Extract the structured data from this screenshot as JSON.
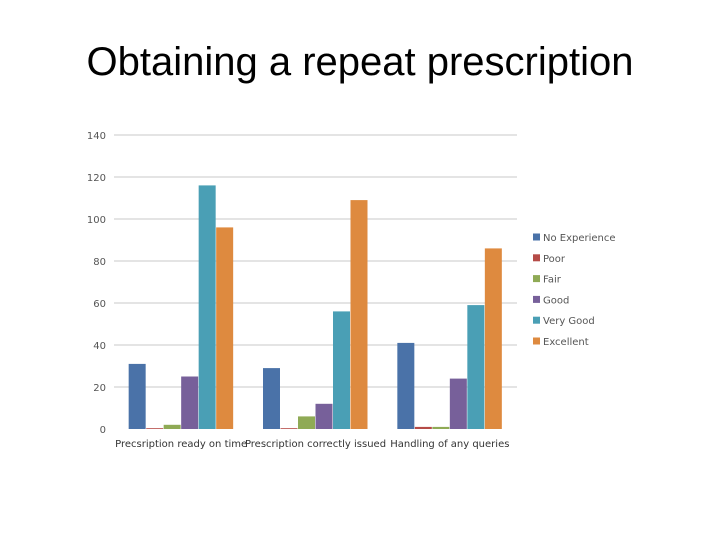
{
  "slide": {
    "title": "Obtaining a repeat prescription"
  },
  "chart_data": {
    "type": "bar",
    "title": "",
    "xlabel": "",
    "ylabel": "",
    "ylim": [
      0,
      140
    ],
    "yticks": [
      0,
      20,
      40,
      60,
      80,
      100,
      120,
      140
    ],
    "grid": true,
    "legend_position": "right",
    "categories": [
      "Precsription ready on time",
      "Prescription correctly issued",
      "Handling of any queries"
    ],
    "series": [
      {
        "name": "No Experience",
        "color": "#4A72A8",
        "values": [
          31,
          29,
          41
        ]
      },
      {
        "name": "Poor",
        "color": "#B54B47",
        "values": [
          0,
          0,
          1
        ]
      },
      {
        "name": "Fair",
        "color": "#8FAA55",
        "values": [
          2,
          6,
          1
        ]
      },
      {
        "name": "Good",
        "color": "#77609A",
        "values": [
          25,
          12,
          24
        ]
      },
      {
        "name": "Very Good",
        "color": "#4A9FB5",
        "values": [
          116,
          56,
          59
        ]
      },
      {
        "name": "Excellent",
        "color": "#DE8A3F",
        "values": [
          96,
          109,
          86
        ]
      }
    ]
  }
}
